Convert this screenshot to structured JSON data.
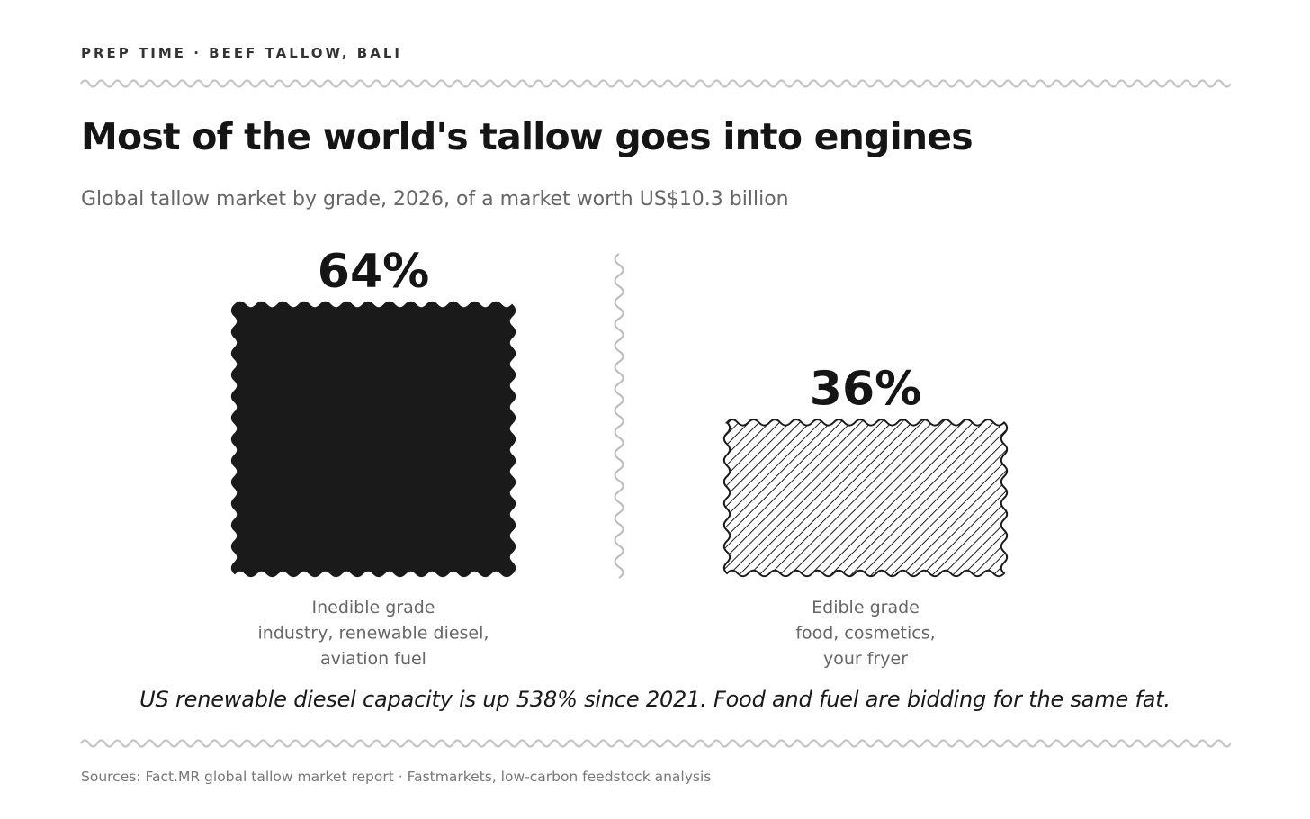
{
  "kicker": "PREP TIME · BEEF TALLOW, BALI",
  "chart_data": {
    "type": "bar",
    "title": "Most of the world's tallow goes into engines",
    "subtitle": "Global tallow market by grade, 2026, of a market worth US$10.3 billion",
    "unit": "%",
    "ylim": [
      0,
      100
    ],
    "grid": false,
    "legend": "none",
    "categories": [
      {
        "name": "Inedible grade",
        "detail": [
          "industry, renewable diesel,",
          "aviation fuel"
        ],
        "fill": "solid",
        "color": "#1a1a1a"
      },
      {
        "name": "Edible grade",
        "detail": [
          "food, cosmetics,",
          "your fryer"
        ],
        "fill": "hatched",
        "color": "#1a1a1a"
      }
    ],
    "values": [
      64,
      36
    ],
    "value_labels": [
      "64%",
      "36%"
    ]
  },
  "note": "US renewable diesel capacity is up 538% since 2021. Food and fuel are bidding for the same fat.",
  "sources": "Sources: Fact.MR global tallow market report · Fastmarkets, low-carbon feedstock analysis"
}
